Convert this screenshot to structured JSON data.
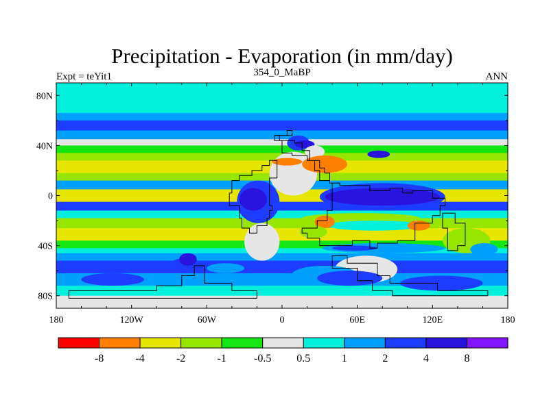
{
  "chart_data": {
    "type": "heatmap",
    "title": "Precipitation - Evaporation (in mm/day)",
    "subtitle_left": "Expt = teYit1",
    "subtitle_center": "354_0_MaBP",
    "subtitle_right": "ANN",
    "x_range": [
      -180,
      180
    ],
    "y_range": [
      -90,
      90
    ],
    "x_ticks": [
      {
        "value": -180,
        "label": "180"
      },
      {
        "value": -120,
        "label": "120W"
      },
      {
        "value": -60,
        "label": "60W"
      },
      {
        "value": 0,
        "label": "0"
      },
      {
        "value": 60,
        "label": "60E"
      },
      {
        "value": 120,
        "label": "120E"
      },
      {
        "value": 180,
        "label": "180"
      }
    ],
    "y_ticks": [
      {
        "value": 80,
        "label": "80N"
      },
      {
        "value": 40,
        "label": "40N"
      },
      {
        "value": 0,
        "label": "0"
      },
      {
        "value": -40,
        "label": "40S"
      },
      {
        "value": -80,
        "label": "80S"
      }
    ],
    "colorbar": {
      "colors": [
        "#ff0000",
        "#ff8000",
        "#e6e600",
        "#96e600",
        "#14e614",
        "#e6e6e6",
        "#00f0dc",
        "#00a0ff",
        "#1e3cff",
        "#2814dc",
        "#8214ff"
      ],
      "labels": [
        "-8",
        "-4",
        "-2",
        "-1",
        "-0.5",
        "0.5",
        "1",
        "2",
        "4",
        "8"
      ]
    },
    "zonal_bands": [
      {
        "lat_from": 90,
        "lat_to": 66,
        "value": 0.7
      },
      {
        "lat_from": 66,
        "lat_to": 60,
        "value": 1.5
      },
      {
        "lat_from": 60,
        "lat_to": 52,
        "value": 3.0
      },
      {
        "lat_from": 52,
        "lat_to": 45,
        "value": 1.2
      },
      {
        "lat_from": 45,
        "lat_to": 40,
        "value": 0.2
      },
      {
        "lat_from": 40,
        "lat_to": 34,
        "value": -0.7
      },
      {
        "lat_from": 34,
        "lat_to": 28,
        "value": -1.5
      },
      {
        "lat_from": 28,
        "lat_to": 18,
        "value": -2.5
      },
      {
        "lat_from": 18,
        "lat_to": 12,
        "value": -1.5
      },
      {
        "lat_from": 12,
        "lat_to": 5,
        "value": 1.5
      },
      {
        "lat_from": 5,
        "lat_to": -5,
        "value": -2.5
      },
      {
        "lat_from": -5,
        "lat_to": -12,
        "value": 3.0
      },
      {
        "lat_from": -12,
        "lat_to": -18,
        "value": 0.7
      },
      {
        "lat_from": -18,
        "lat_to": -26,
        "value": -1.5
      },
      {
        "lat_from": -26,
        "lat_to": -36,
        "value": -3.0
      },
      {
        "lat_from": -36,
        "lat_to": -42,
        "value": -0.7
      },
      {
        "lat_from": -42,
        "lat_to": -46,
        "value": 0.7
      },
      {
        "lat_from": -46,
        "lat_to": -52,
        "value": 1.5
      },
      {
        "lat_from": -52,
        "lat_to": -62,
        "value": 3.0
      },
      {
        "lat_from": -62,
        "lat_to": -72,
        "value": 1.5
      },
      {
        "lat_from": -72,
        "lat_to": -80,
        "value": 0.7
      },
      {
        "lat_from": -80,
        "lat_to": -90,
        "value": 0.2
      }
    ],
    "regional_features": [
      {
        "lon": [
          -10,
          28
        ],
        "lat": [
          35,
          0
        ],
        "value": 0.2
      },
      {
        "lon": [
          4,
          22
        ],
        "lat": [
          48,
          36
        ],
        "value": 3.0
      },
      {
        "lon": [
          10,
          26
        ],
        "lat": [
          44,
          38
        ],
        "value": 5.0
      },
      {
        "lon": [
          18,
          34
        ],
        "lat": [
          40,
          30
        ],
        "value": -0.2
      },
      {
        "lon": [
          -8,
          16
        ],
        "lat": [
          30,
          24
        ],
        "value": -6.0
      },
      {
        "lon": [
          16,
          52
        ],
        "lat": [
          32,
          18
        ],
        "value": -6.0
      },
      {
        "lon": [
          -36,
          -2
        ],
        "lat": [
          12,
          -22
        ],
        "value": 3.0
      },
      {
        "lon": [
          -34,
          -12
        ],
        "lat": [
          6,
          -12
        ],
        "value": 5.0
      },
      {
        "lon": [
          -30,
          -2
        ],
        "lat": [
          -22,
          -52
        ],
        "value": 0.2
      },
      {
        "lon": [
          -12,
          0
        ],
        "lat": [
          -54,
          -60
        ],
        "value": 3.0
      },
      {
        "lon": [
          -60,
          -30
        ],
        "lat": [
          -54,
          -62
        ],
        "value": 1.5
      },
      {
        "lon": [
          -90,
          -64
        ],
        "lat": [
          -50,
          -62
        ],
        "value": 3.0
      },
      {
        "lon": [
          -82,
          -68
        ],
        "lat": [
          -46,
          -56
        ],
        "value": 5.0
      },
      {
        "lon": [
          -160,
          -110
        ],
        "lat": [
          -62,
          -72
        ],
        "value": 3.0
      },
      {
        "lon": [
          30,
          130
        ],
        "lat": [
          10,
          -12
        ],
        "value": 3.0
      },
      {
        "lon": [
          34,
          126
        ],
        "lat": [
          6,
          -8
        ],
        "value": 5.0
      },
      {
        "lon": [
          96,
          120
        ],
        "lat": [
          4,
          -4
        ],
        "value": 7.0
      },
      {
        "lon": [
          16,
          110
        ],
        "lat": [
          -14,
          -22
        ],
        "value": -1.5
      },
      {
        "lon": [
          36,
          112
        ],
        "lat": [
          -20,
          -28
        ],
        "value": 0.7
      },
      {
        "lon": [
          100,
          118
        ],
        "lat": [
          -20,
          -28
        ],
        "value": -6.0
      },
      {
        "lon": [
          26,
          42
        ],
        "lat": [
          -16,
          -26
        ],
        "value": -6.0
      },
      {
        "lon": [
          14,
          36
        ],
        "lat": [
          -24,
          -34
        ],
        "value": -1.5
      },
      {
        "lon": [
          32,
          130
        ],
        "lat": [
          -38,
          -46
        ],
        "value": 1.5
      },
      {
        "lon": [
          40,
          76
        ],
        "lat": [
          -40,
          -44
        ],
        "value": 3.0
      },
      {
        "lon": [
          42,
          92
        ],
        "lat": [
          -48,
          -70
        ],
        "value": 0.2
      },
      {
        "lon": [
          8,
          60
        ],
        "lat": [
          -56,
          -70
        ],
        "value": 1.5
      },
      {
        "lon": [
          28,
          80
        ],
        "lat": [
          -60,
          -72
        ],
        "value": 3.0
      },
      {
        "lon": [
          94,
          160
        ],
        "lat": [
          -64,
          -76
        ],
        "value": 3.0
      },
      {
        "lon": [
          128,
          166
        ],
        "lat": [
          -26,
          -46
        ],
        "value": -1.5
      },
      {
        "lon": [
          150,
          172
        ],
        "lat": [
          -38,
          -48
        ],
        "value": 1.5
      },
      {
        "lon": [
          68,
          86
        ],
        "lat": [
          36,
          30
        ],
        "value": 5.0
      }
    ],
    "land_outlines": [
      [
        [
          -6,
          48
        ],
        [
          -2,
          48
        ],
        [
          -2,
          44
        ],
        [
          10,
          44
        ],
        [
          10,
          42
        ],
        [
          16,
          42
        ],
        [
          16,
          36
        ],
        [
          22,
          36
        ],
        [
          22,
          28
        ],
        [
          30,
          28
        ],
        [
          30,
          22
        ],
        [
          34,
          22
        ],
        [
          34,
          18
        ],
        [
          38,
          18
        ],
        [
          38,
          10
        ],
        [
          40,
          10
        ],
        [
          40,
          -12
        ],
        [
          36,
          -12
        ],
        [
          36,
          -20
        ],
        [
          28,
          -20
        ],
        [
          28,
          -26
        ],
        [
          16,
          -26
        ],
        [
          16,
          -30
        ],
        [
          20,
          -30
        ],
        [
          20,
          -34
        ],
        [
          30,
          -34
        ],
        [
          30,
          -40
        ],
        [
          56,
          -40
        ],
        [
          56,
          -36
        ],
        [
          70,
          -36
        ],
        [
          70,
          -42
        ],
        [
          76,
          -42
        ],
        [
          76,
          -38
        ],
        [
          92,
          -38
        ],
        [
          92,
          -36
        ],
        [
          106,
          -36
        ],
        [
          106,
          -22
        ],
        [
          120,
          -22
        ],
        [
          120,
          -16
        ],
        [
          126,
          -16
        ],
        [
          126,
          -8
        ],
        [
          130,
          -8
        ],
        [
          130,
          -2
        ],
        [
          120,
          -2
        ],
        [
          120,
          4
        ],
        [
          104,
          4
        ],
        [
          104,
          2
        ],
        [
          96,
          2
        ],
        [
          96,
          6
        ],
        [
          86,
          6
        ],
        [
          86,
          4
        ],
        [
          70,
          4
        ],
        [
          70,
          8
        ],
        [
          46,
          8
        ],
        [
          46,
          10
        ],
        [
          38,
          10
        ],
        [
          38,
          12
        ],
        [
          30,
          12
        ],
        [
          30,
          20
        ],
        [
          26,
          20
        ],
        [
          26,
          28
        ],
        [
          20,
          28
        ],
        [
          20,
          32
        ],
        [
          8,
          32
        ],
        [
          8,
          34
        ],
        [
          0,
          34
        ],
        [
          0,
          44
        ],
        [
          -6,
          44
        ],
        [
          -6,
          48
        ]
      ],
      [
        [
          -10,
          28
        ],
        [
          -4,
          28
        ],
        [
          -4,
          14
        ],
        [
          -10,
          14
        ],
        [
          -10,
          -8
        ],
        [
          -8,
          -8
        ],
        [
          -8,
          -12
        ],
        [
          -10,
          -12
        ],
        [
          -10,
          -18
        ],
        [
          -12,
          -18
        ],
        [
          -12,
          -24
        ],
        [
          -20,
          -24
        ],
        [
          -20,
          -30
        ],
        [
          -26,
          -30
        ],
        [
          -26,
          -26
        ],
        [
          -32,
          -26
        ],
        [
          -32,
          -18
        ],
        [
          -34,
          -18
        ],
        [
          -34,
          -8
        ],
        [
          -42,
          -8
        ],
        [
          -42,
          2
        ],
        [
          -40,
          2
        ],
        [
          -40,
          12
        ],
        [
          -34,
          12
        ],
        [
          -34,
          16
        ],
        [
          -24,
          16
        ],
        [
          -24,
          20
        ],
        [
          -16,
          20
        ],
        [
          -16,
          24
        ],
        [
          -10,
          24
        ],
        [
          -10,
          28
        ]
      ],
      [
        [
          -4,
          48
        ],
        [
          4,
          48
        ],
        [
          4,
          52
        ],
        [
          8,
          52
        ],
        [
          8,
          48
        ],
        [
          -4,
          48
        ]
      ],
      [
        [
          -170,
          -76
        ],
        [
          -100,
          -76
        ],
        [
          -100,
          -72
        ],
        [
          -80,
          -72
        ],
        [
          -80,
          -64
        ],
        [
          -70,
          -64
        ],
        [
          -70,
          -56
        ],
        [
          -62,
          -56
        ],
        [
          -62,
          -70
        ],
        [
          -40,
          -70
        ],
        [
          -40,
          -76
        ],
        [
          -20,
          -76
        ],
        [
          -20,
          -82
        ],
        [
          -170,
          -82
        ],
        [
          -170,
          -76
        ]
      ],
      [
        [
          40,
          -48
        ],
        [
          52,
          -48
        ],
        [
          52,
          -54
        ],
        [
          76,
          -54
        ],
        [
          76,
          -64
        ],
        [
          86,
          -64
        ],
        [
          86,
          -70
        ],
        [
          124,
          -70
        ],
        [
          124,
          -76
        ],
        [
          164,
          -76
        ],
        [
          164,
          -80
        ],
        [
          88,
          -80
        ],
        [
          88,
          -76
        ],
        [
          72,
          -76
        ],
        [
          72,
          -68
        ],
        [
          60,
          -68
        ],
        [
          60,
          -58
        ],
        [
          40,
          -58
        ],
        [
          40,
          -48
        ]
      ],
      [
        [
          128,
          -14
        ],
        [
          138,
          -14
        ],
        [
          138,
          -22
        ],
        [
          146,
          -22
        ],
        [
          146,
          -40
        ],
        [
          140,
          -40
        ],
        [
          140,
          -44
        ],
        [
          132,
          -44
        ],
        [
          132,
          -26
        ],
        [
          128,
          -26
        ],
        [
          128,
          -14
        ]
      ]
    ]
  }
}
